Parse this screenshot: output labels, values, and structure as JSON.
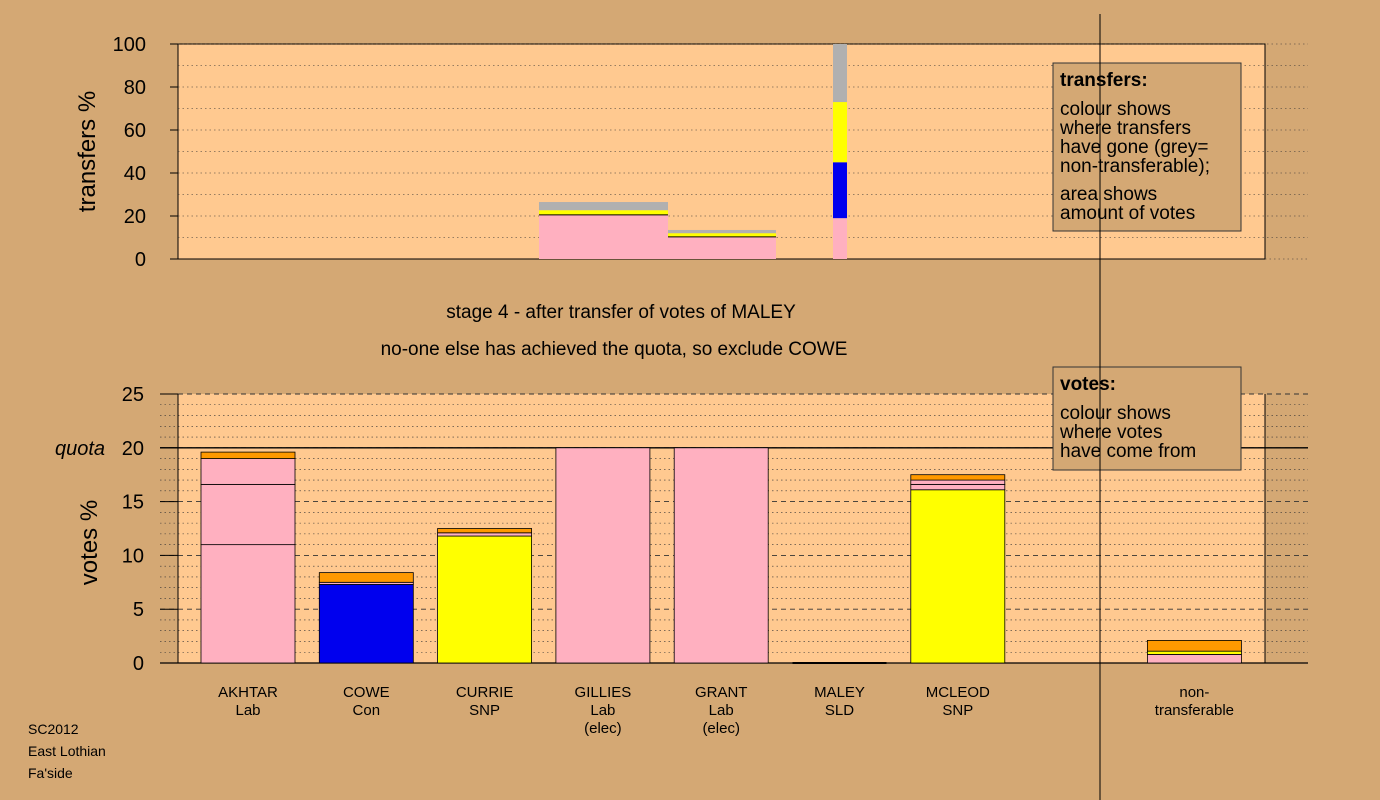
{
  "footer": [
    "SC2012",
    "East Lothian",
    "Fa'side"
  ],
  "chart_data": {
    "type": "bar",
    "stage_title": "stage 4 - after transfer of votes of MALEY",
    "stage_subtitle": "no-one else has achieved the quota, so exclude COWE",
    "colors": {
      "Lab": "#FFB0C0",
      "Con": "#0000EE",
      "SNP": "#FFFF00",
      "SLD": "#FF9900",
      "nontransferable": "#B0B0B0",
      "background": "#D4A874",
      "plot_bg": "#FFC990"
    },
    "top": {
      "ylabel": "transfers %",
      "ylim": [
        0,
        100
      ],
      "yticks": [
        0,
        20,
        40,
        60,
        80,
        100
      ],
      "legend": {
        "title": "transfers:",
        "lines1": [
          "colour shows",
          "where transfers",
          "have gone (grey=",
          "non-transferable);"
        ],
        "lines2": [
          "area shows",
          "amount of votes"
        ]
      },
      "bars": [
        {
          "candidate": "GILLIES",
          "segments": [
            {
              "party": "Lab",
              "value": 20.5
            },
            {
              "party": "SNP",
              "value": 2.2
            },
            {
              "party": "nontransferable",
              "value": 3.8
            }
          ]
        },
        {
          "candidate": "GRANT",
          "segments": [
            {
              "party": "Lab",
              "value": 10.3
            },
            {
              "party": "SNP",
              "value": 1.7
            },
            {
              "party": "nontransferable",
              "value": 1.5
            }
          ]
        },
        {
          "candidate": "MALEY",
          "segments": [
            {
              "party": "Lab",
              "value": 19
            },
            {
              "party": "Con",
              "value": 26
            },
            {
              "party": "SNP",
              "value": 28
            },
            {
              "party": "nontransferable",
              "value": 27
            }
          ]
        }
      ]
    },
    "bottom": {
      "ylabel": "votes %",
      "ylim": [
        0,
        25
      ],
      "yticks": [
        0,
        5,
        10,
        15,
        20,
        25
      ],
      "quota": 20,
      "quota_label": "quota",
      "legend": {
        "title": "votes:",
        "lines": [
          "colour shows",
          "where votes",
          "have come from"
        ]
      },
      "categories": [
        {
          "name": "AKHTAR",
          "party": "Lab",
          "note": ""
        },
        {
          "name": "COWE",
          "party": "Con",
          "note": ""
        },
        {
          "name": "CURRIE",
          "party": "SNP",
          "note": ""
        },
        {
          "name": "GILLIES",
          "party": "Lab",
          "note": "(elec)"
        },
        {
          "name": "GRANT",
          "party": "Lab",
          "note": "(elec)"
        },
        {
          "name": "MALEY",
          "party": "SLD",
          "note": ""
        },
        {
          "name": "MCLEOD",
          "party": "SNP",
          "note": ""
        },
        {
          "name": "",
          "party": "",
          "note": ""
        },
        {
          "name": "non-",
          "party": "transferable",
          "note": ""
        }
      ],
      "stacks": [
        [
          {
            "party": "Lab",
            "value": 11.0
          },
          {
            "party": "Lab",
            "value": 5.6
          },
          {
            "party": "Lab",
            "value": 2.4
          },
          {
            "party": "SLD",
            "value": 0.6
          }
        ],
        [
          {
            "party": "Con",
            "value": 7.3
          },
          {
            "party": "Lab",
            "value": 0.2
          },
          {
            "party": "SLD",
            "value": 0.9
          }
        ],
        [
          {
            "party": "SNP",
            "value": 11.8
          },
          {
            "party": "Lab",
            "value": 0.3
          },
          {
            "party": "SLD",
            "value": 0.4
          }
        ],
        [
          {
            "party": "Lab",
            "value": 20.0
          }
        ],
        [
          {
            "party": "Lab",
            "value": 20.0
          }
        ],
        [
          {
            "party": "SLD",
            "value": 0.0
          }
        ],
        [
          {
            "party": "SNP",
            "value": 16.1
          },
          {
            "party": "Lab",
            "value": 0.5
          },
          {
            "party": "Lab",
            "value": 0.4
          },
          {
            "party": "SLD",
            "value": 0.5
          }
        ],
        [],
        [
          {
            "party": "Lab",
            "value": 0.8
          },
          {
            "party": "SNP",
            "value": 0.3
          },
          {
            "party": "SLD",
            "value": 1.0
          }
        ]
      ]
    }
  }
}
